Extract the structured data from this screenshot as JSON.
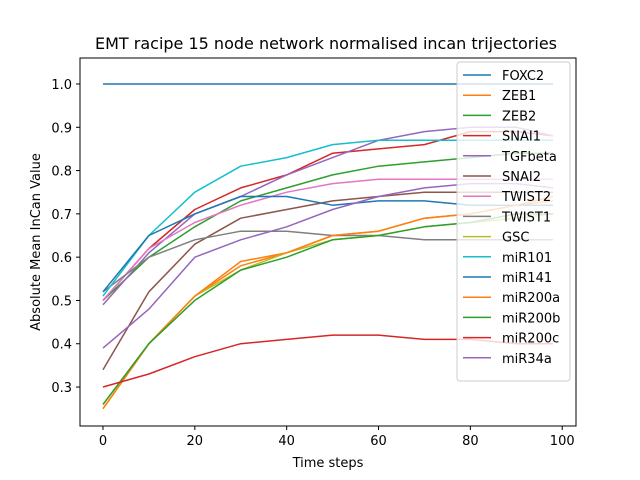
{
  "chart_data": {
    "type": "line",
    "title": "EMT racipe 15 node network normalised incan trijectories",
    "xlabel": "Time steps",
    "ylabel": "Absolute Mean InCan Value",
    "xlim": [
      -5,
      103
    ],
    "ylim": [
      0.21,
      1.06
    ],
    "xticks": [
      0,
      20,
      40,
      60,
      80,
      100
    ],
    "yticks": [
      0.3,
      0.4,
      0.5,
      0.6,
      0.7,
      0.8,
      0.9,
      1.0
    ],
    "ytick_labels": [
      "0.3",
      "0.4",
      "0.5",
      "0.6",
      "0.7",
      "0.8",
      "0.9",
      "1.0"
    ],
    "grid": false,
    "legend_position": "right",
    "x": [
      0,
      10,
      20,
      30,
      40,
      50,
      60,
      70,
      80,
      90,
      98
    ],
    "series": [
      {
        "name": "FOXC2",
        "color": "#1f77b4",
        "values": [
          1.0,
          1.0,
          1.0,
          1.0,
          1.0,
          1.0,
          1.0,
          1.0,
          1.0,
          1.0,
          1.0
        ]
      },
      {
        "name": "ZEB1",
        "color": "#ff7f0e",
        "values": [
          0.25,
          0.4,
          0.51,
          0.58,
          0.61,
          0.65,
          0.66,
          0.69,
          0.7,
          0.72,
          0.73
        ]
      },
      {
        "name": "ZEB2",
        "color": "#2ca02c",
        "values": [
          0.5,
          0.6,
          0.67,
          0.73,
          0.76,
          0.79,
          0.81,
          0.82,
          0.83,
          0.84,
          0.84
        ]
      },
      {
        "name": "SNAI1",
        "color": "#d62728",
        "values": [
          0.5,
          0.62,
          0.71,
          0.76,
          0.79,
          0.84,
          0.85,
          0.86,
          0.89,
          0.89,
          0.88
        ]
      },
      {
        "name": "TGFbeta",
        "color": "#9467bd",
        "values": [
          0.49,
          0.61,
          0.7,
          0.74,
          0.79,
          0.83,
          0.87,
          0.89,
          0.9,
          0.9,
          0.88
        ]
      },
      {
        "name": "SNAI2",
        "color": "#8c564b",
        "values": [
          0.34,
          0.52,
          0.63,
          0.69,
          0.71,
          0.73,
          0.74,
          0.75,
          0.75,
          0.75,
          0.75
        ]
      },
      {
        "name": "TWIST2",
        "color": "#e377c2",
        "values": [
          0.5,
          0.62,
          0.68,
          0.72,
          0.75,
          0.77,
          0.78,
          0.78,
          0.78,
          0.78,
          0.78
        ]
      },
      {
        "name": "TWIST1",
        "color": "#7f7f7f",
        "values": [
          0.52,
          0.6,
          0.64,
          0.66,
          0.66,
          0.65,
          0.65,
          0.64,
          0.64,
          0.64,
          0.64
        ]
      },
      {
        "name": "GSC",
        "color": "#bcbd22",
        "values": [
          0.26,
          0.4,
          0.51,
          0.57,
          0.61,
          0.64,
          0.65,
          0.67,
          0.68,
          0.69,
          0.7
        ]
      },
      {
        "name": "miR101",
        "color": "#17becf",
        "values": [
          0.51,
          0.65,
          0.75,
          0.81,
          0.83,
          0.86,
          0.87,
          0.87,
          0.87,
          0.87,
          0.87
        ]
      },
      {
        "name": "miR141",
        "color": "#1f77b4",
        "values": [
          0.52,
          0.65,
          0.7,
          0.74,
          0.74,
          0.72,
          0.73,
          0.73,
          0.72,
          0.72,
          0.72
        ]
      },
      {
        "name": "miR200a",
        "color": "#ff7f0e",
        "values": [
          0.25,
          0.4,
          0.51,
          0.59,
          0.61,
          0.65,
          0.66,
          0.69,
          0.7,
          0.72,
          0.74
        ]
      },
      {
        "name": "miR200b",
        "color": "#2ca02c",
        "values": [
          0.26,
          0.4,
          0.5,
          0.57,
          0.6,
          0.64,
          0.65,
          0.67,
          0.68,
          0.7,
          0.7
        ]
      },
      {
        "name": "miR200c",
        "color": "#d62728",
        "values": [
          0.3,
          0.33,
          0.37,
          0.4,
          0.41,
          0.42,
          0.42,
          0.41,
          0.41,
          0.4,
          0.4
        ]
      },
      {
        "name": "miR34a",
        "color": "#9467bd",
        "values": [
          0.39,
          0.48,
          0.6,
          0.64,
          0.67,
          0.71,
          0.74,
          0.76,
          0.77,
          0.77,
          0.76
        ]
      }
    ]
  }
}
